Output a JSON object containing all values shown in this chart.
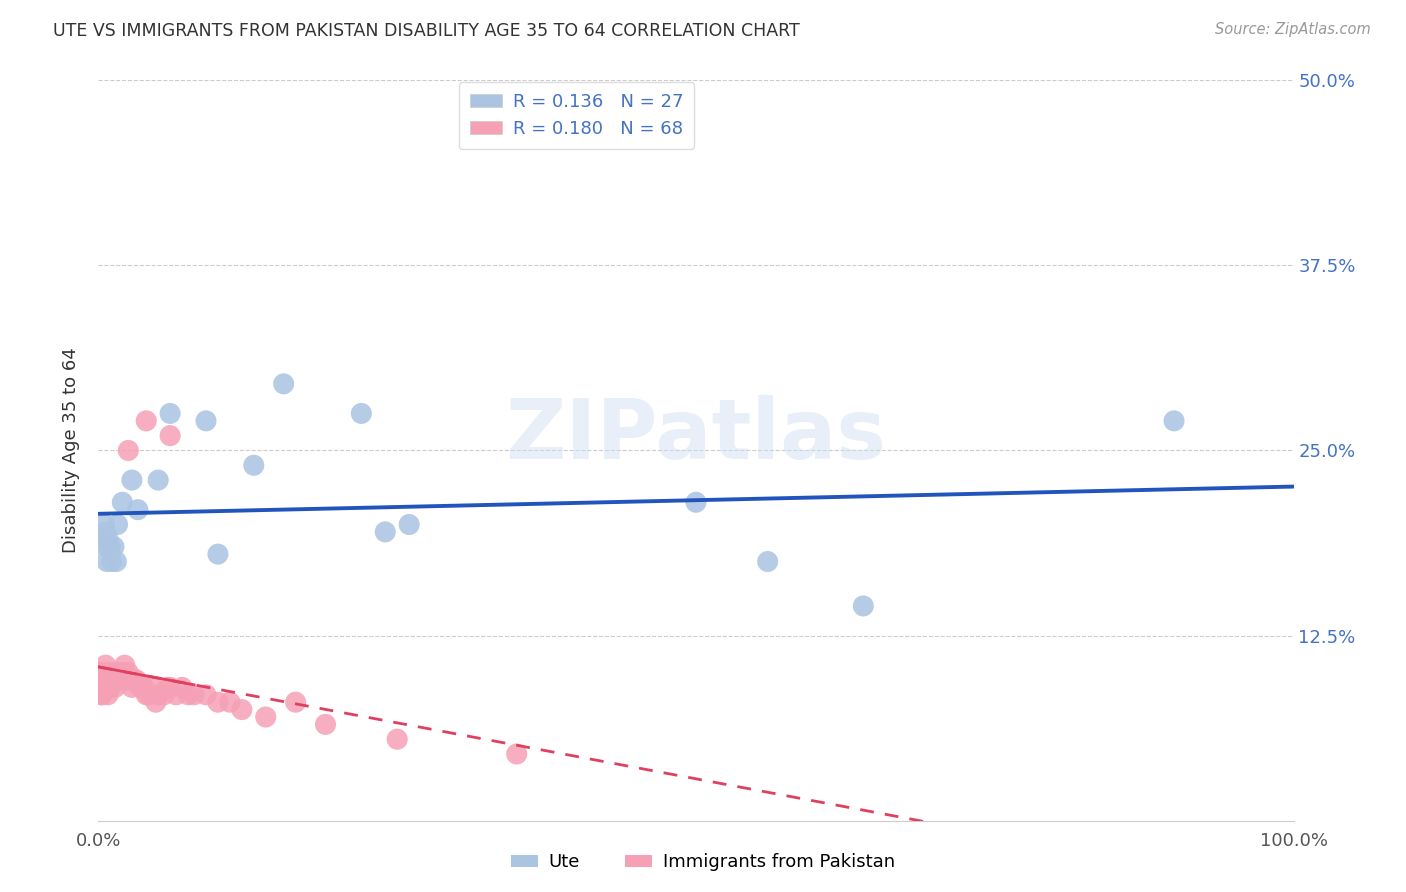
{
  "title": "UTE VS IMMIGRANTS FROM PAKISTAN DISABILITY AGE 35 TO 64 CORRELATION CHART",
  "source": "Source: ZipAtlas.com",
  "ylabel": "Disability Age 35 to 64",
  "ytick_vals": [
    0.0,
    0.125,
    0.25,
    0.375,
    0.5
  ],
  "ytick_labels": [
    "",
    "12.5%",
    "25.0%",
    "37.5%",
    "50.0%"
  ],
  "legend_ute": "Ute",
  "legend_pak": "Immigrants from Pakistan",
  "ute_color": "#aac4e2",
  "pak_color": "#f5a0b5",
  "trendline_ute_color": "#2255bb",
  "trendline_pak_color": "#e04060",
  "trendline_pak_dash_color": "#e080a0",
  "watermark": "ZIPatlas",
  "legend1_R": "0.136",
  "legend1_N": "27",
  "legend2_R": "0.180",
  "legend2_N": "68",
  "ute_x": [
    0.006,
    0.006,
    0.007,
    0.008,
    0.009,
    0.01,
    0.011,
    0.013,
    0.015,
    0.016,
    0.02,
    0.028,
    0.033,
    0.05,
    0.06,
    0.09,
    0.1,
    0.13,
    0.155,
    0.22,
    0.24,
    0.26,
    0.5,
    0.56,
    0.64,
    0.9,
    0.005
  ],
  "ute_y": [
    0.195,
    0.185,
    0.175,
    0.19,
    0.185,
    0.185,
    0.175,
    0.185,
    0.175,
    0.2,
    0.215,
    0.23,
    0.21,
    0.23,
    0.275,
    0.27,
    0.18,
    0.24,
    0.295,
    0.275,
    0.195,
    0.2,
    0.215,
    0.175,
    0.145,
    0.27,
    0.2
  ],
  "pak_x": [
    0.001,
    0.001,
    0.001,
    0.002,
    0.002,
    0.002,
    0.002,
    0.003,
    0.003,
    0.003,
    0.004,
    0.004,
    0.005,
    0.005,
    0.006,
    0.006,
    0.007,
    0.007,
    0.008,
    0.008,
    0.009,
    0.009,
    0.01,
    0.01,
    0.011,
    0.012,
    0.013,
    0.014,
    0.015,
    0.016,
    0.017,
    0.018,
    0.019,
    0.02,
    0.021,
    0.022,
    0.024,
    0.025,
    0.027,
    0.028,
    0.03,
    0.032,
    0.035,
    0.038,
    0.04,
    0.042,
    0.045,
    0.048,
    0.05,
    0.055,
    0.058,
    0.06,
    0.065,
    0.07,
    0.075,
    0.08,
    0.09,
    0.1,
    0.11,
    0.12,
    0.14,
    0.165,
    0.19,
    0.25,
    0.35,
    0.04,
    0.06,
    0.025
  ],
  "pak_y": [
    0.1,
    0.095,
    0.09,
    0.1,
    0.095,
    0.09,
    0.085,
    0.095,
    0.09,
    0.085,
    0.095,
    0.09,
    0.1,
    0.09,
    0.105,
    0.095,
    0.1,
    0.09,
    0.095,
    0.085,
    0.1,
    0.09,
    0.1,
    0.09,
    0.095,
    0.1,
    0.095,
    0.09,
    0.1,
    0.1,
    0.095,
    0.1,
    0.1,
    0.1,
    0.095,
    0.105,
    0.095,
    0.1,
    0.095,
    0.09,
    0.095,
    0.095,
    0.09,
    0.09,
    0.085,
    0.085,
    0.09,
    0.08,
    0.085,
    0.085,
    0.09,
    0.09,
    0.085,
    0.09,
    0.085,
    0.085,
    0.085,
    0.08,
    0.08,
    0.075,
    0.07,
    0.08,
    0.065,
    0.055,
    0.045,
    0.27,
    0.26,
    0.25
  ]
}
